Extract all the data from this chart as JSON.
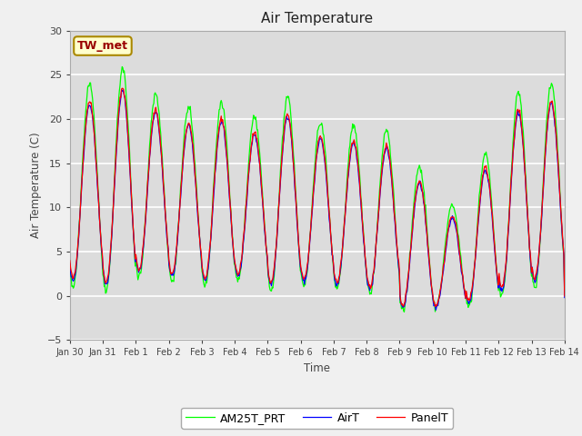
{
  "title": "Air Temperature",
  "ylabel": "Air Temperature (C)",
  "xlabel": "Time",
  "ylim": [
    -5,
    30
  ],
  "yticks": [
    -5,
    0,
    5,
    10,
    15,
    20,
    25,
    30
  ],
  "label_text": "TW_met",
  "line_colors": [
    "red",
    "blue",
    "lime"
  ],
  "line_labels": [
    "PanelT",
    "AirT",
    "AM25T_PRT"
  ],
  "bg_color": "#dcdcdc",
  "grid_color": "white",
  "tick_dates": [
    "Jan 30",
    "Jan 31",
    "Feb 1",
    "Feb 2",
    "Feb 3",
    "Feb 4",
    "Feb 5",
    "Feb 6",
    "Feb 7",
    "Feb 8",
    "Feb 9",
    "Feb 10",
    "Feb 11",
    "Feb 12",
    "Feb 13",
    "Feb 14"
  ],
  "seed": 42
}
